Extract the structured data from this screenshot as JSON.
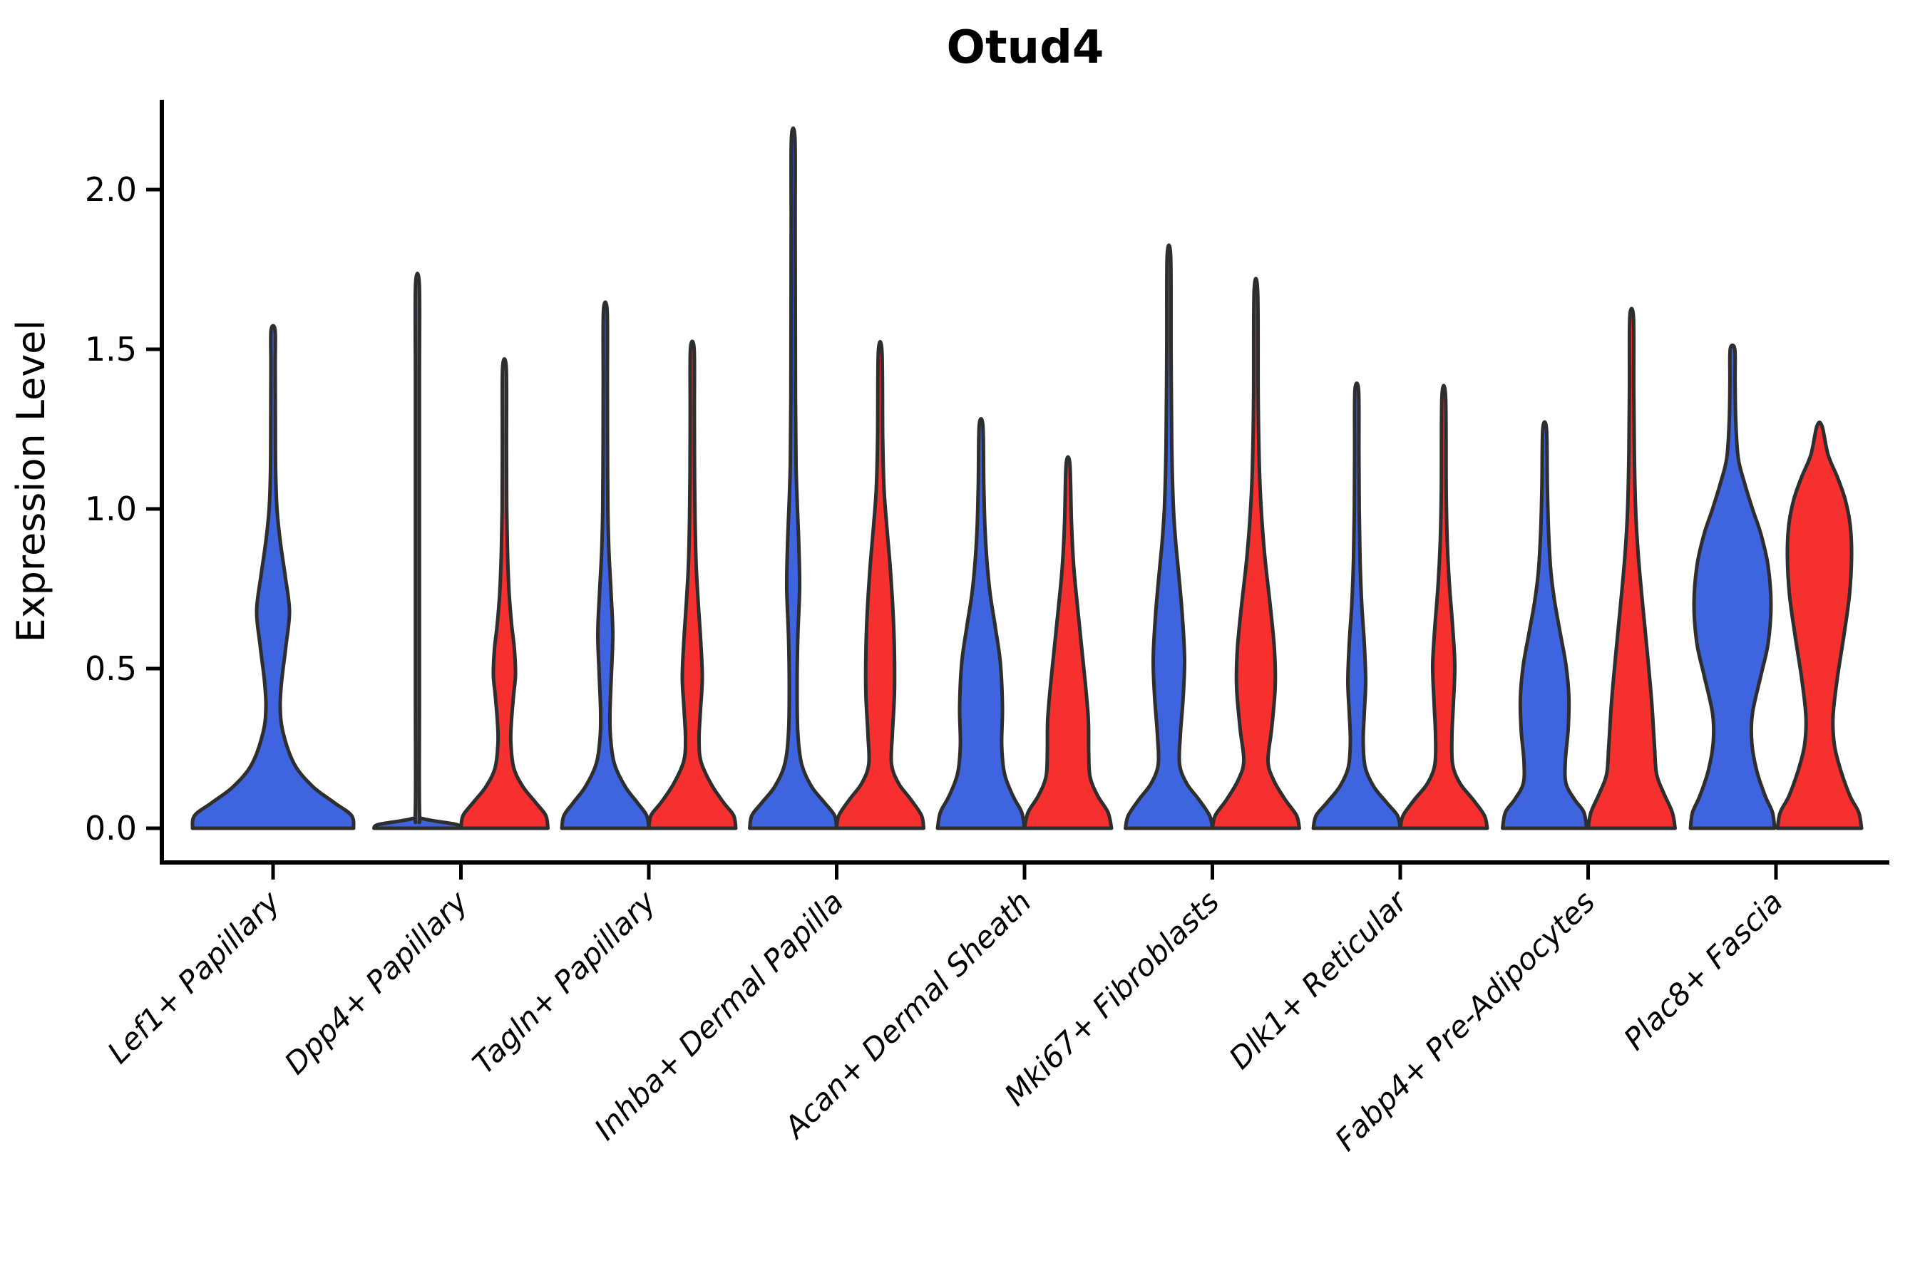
{
  "page": {
    "background": "#FFFFFF"
  },
  "chart_data": {
    "type": "violin",
    "title": "Otud4",
    "ylabel": "Expression Level",
    "xlabel": "",
    "grid": false,
    "legend": "none",
    "axis_color": "#000000",
    "outline_color": "#2E2E2E",
    "series_colors": {
      "blue": "#3E64E0",
      "red": "#F5302E"
    },
    "ylim": [
      -0.11,
      2.28
    ],
    "yticks": [
      {
        "value": 0.0,
        "label": "0.0"
      },
      {
        "value": 0.5,
        "label": "0.5"
      },
      {
        "value": 1.0,
        "label": "1.0"
      },
      {
        "value": 1.5,
        "label": "1.5"
      },
      {
        "value": 2.0,
        "label": "2.0"
      }
    ],
    "categories": [
      "Lef1+ Papillary",
      "Dpp4+ Papillary",
      "Tagln+ Papillary",
      "Inhba+ Dermal Papilla",
      "Acan+ Dermal Sheath",
      "Mki67+ Fibroblasts",
      "Dlk1+ Reticular",
      "Fabp4+ Pre-Adipocytes",
      "Plac8+ Fascia"
    ],
    "violins": [
      {
        "category_index": 0,
        "group": "blue",
        "side": "center",
        "max_value": 1.56,
        "profile": [
          [
            0,
            113
          ],
          [
            0.04,
            110
          ],
          [
            0.08,
            86
          ],
          [
            0.13,
            56
          ],
          [
            0.2,
            30
          ],
          [
            0.3,
            14
          ],
          [
            0.38,
            10
          ],
          [
            0.46,
            12
          ],
          [
            0.57,
            18
          ],
          [
            0.68,
            23
          ],
          [
            0.79,
            17
          ],
          [
            0.9,
            10
          ],
          [
            1.0,
            5.5
          ],
          [
            1.12,
            3.6
          ],
          [
            1.3,
            3.2
          ],
          [
            1.45,
            3.0
          ],
          [
            1.56,
            2.8
          ]
        ]
      },
      {
        "category_index": 1,
        "group": "blue",
        "side": "left",
        "max_value": 1.7,
        "profile": [
          [
            0,
            61
          ],
          [
            0.012,
            54
          ],
          [
            0.03,
            8
          ],
          [
            0.05,
            3.0
          ],
          [
            0.4,
            2.8
          ],
          [
            0.9,
            2.8
          ],
          [
            1.4,
            2.8
          ],
          [
            1.7,
            2.7
          ]
        ]
      },
      {
        "category_index": 1,
        "group": "red",
        "side": "right",
        "max_value": 1.44,
        "profile": [
          [
            0,
            61
          ],
          [
            0.04,
            58
          ],
          [
            0.08,
            44
          ],
          [
            0.13,
            26
          ],
          [
            0.19,
            13
          ],
          [
            0.27,
            9
          ],
          [
            0.34,
            10
          ],
          [
            0.42,
            13
          ],
          [
            0.48,
            15.5
          ],
          [
            0.56,
            14
          ],
          [
            0.64,
            10
          ],
          [
            0.74,
            6.5
          ],
          [
            0.86,
            4.4
          ],
          [
            1.0,
            3.2
          ],
          [
            1.2,
            2.9
          ],
          [
            1.44,
            2.6
          ]
        ]
      },
      {
        "category_index": 2,
        "group": "blue",
        "side": "left",
        "max_value": 1.62,
        "profile": [
          [
            0,
            61
          ],
          [
            0.04,
            58
          ],
          [
            0.08,
            45
          ],
          [
            0.13,
            28
          ],
          [
            0.2,
            13
          ],
          [
            0.28,
            7.5
          ],
          [
            0.36,
            6.5
          ],
          [
            0.48,
            8.5
          ],
          [
            0.61,
            10.5
          ],
          [
            0.74,
            8
          ],
          [
            0.87,
            5
          ],
          [
            1.0,
            3.6
          ],
          [
            1.2,
            3.1
          ],
          [
            1.4,
            2.9
          ],
          [
            1.62,
            2.6
          ]
        ]
      },
      {
        "category_index": 2,
        "group": "red",
        "side": "right",
        "max_value": 1.5,
        "profile": [
          [
            0,
            61
          ],
          [
            0.04,
            58
          ],
          [
            0.08,
            44
          ],
          [
            0.14,
            26
          ],
          [
            0.21,
            12
          ],
          [
            0.28,
            9.5
          ],
          [
            0.37,
            11.5
          ],
          [
            0.47,
            14
          ],
          [
            0.58,
            12
          ],
          [
            0.7,
            8.5
          ],
          [
            0.82,
            5.5
          ],
          [
            0.95,
            4.0
          ],
          [
            1.1,
            3.2
          ],
          [
            1.3,
            2.9
          ],
          [
            1.5,
            2.6
          ]
        ]
      },
      {
        "category_index": 3,
        "group": "blue",
        "side": "left",
        "max_value": 2.16,
        "profile": [
          [
            0,
            61
          ],
          [
            0.04,
            58
          ],
          [
            0.08,
            44
          ],
          [
            0.13,
            26
          ],
          [
            0.2,
            12
          ],
          [
            0.3,
            6.5
          ],
          [
            0.45,
            5.5
          ],
          [
            0.6,
            6.5
          ],
          [
            0.75,
            9
          ],
          [
            0.88,
            8
          ],
          [
            1.0,
            6
          ],
          [
            1.14,
            4
          ],
          [
            1.35,
            3.2
          ],
          [
            1.6,
            3.0
          ],
          [
            1.9,
            2.8
          ],
          [
            2.16,
            2.5
          ]
        ]
      },
      {
        "category_index": 3,
        "group": "red",
        "side": "right",
        "max_value": 1.49,
        "profile": [
          [
            0,
            61
          ],
          [
            0.04,
            58
          ],
          [
            0.09,
            43
          ],
          [
            0.14,
            26
          ],
          [
            0.2,
            16
          ],
          [
            0.29,
            17
          ],
          [
            0.42,
            20
          ],
          [
            0.55,
            20
          ],
          [
            0.68,
            18
          ],
          [
            0.82,
            14
          ],
          [
            0.94,
            9.5
          ],
          [
            1.06,
            5.5
          ],
          [
            1.22,
            3.6
          ],
          [
            1.49,
            2.6
          ]
        ]
      },
      {
        "category_index": 4,
        "group": "blue",
        "side": "left",
        "max_value": 1.26,
        "profile": [
          [
            0,
            61
          ],
          [
            0.05,
            57
          ],
          [
            0.1,
            45
          ],
          [
            0.17,
            33
          ],
          [
            0.26,
            29
          ],
          [
            0.38,
            30
          ],
          [
            0.52,
            27
          ],
          [
            0.63,
            20
          ],
          [
            0.73,
            13
          ],
          [
            0.83,
            8.5
          ],
          [
            0.94,
            5.5
          ],
          [
            1.08,
            3.8
          ],
          [
            1.26,
            2.6
          ]
        ]
      },
      {
        "category_index": 4,
        "group": "red",
        "side": "right",
        "max_value": 1.14,
        "profile": [
          [
            0,
            61
          ],
          [
            0.05,
            56
          ],
          [
            0.1,
            42
          ],
          [
            0.16,
            31
          ],
          [
            0.24,
            29
          ],
          [
            0.34,
            28.5
          ],
          [
            0.46,
            24
          ],
          [
            0.58,
            18.5
          ],
          [
            0.7,
            13
          ],
          [
            0.82,
            8
          ],
          [
            0.96,
            4.8
          ],
          [
            1.14,
            2.6
          ]
        ]
      },
      {
        "category_index": 5,
        "group": "blue",
        "side": "left",
        "max_value": 1.79,
        "profile": [
          [
            0,
            61
          ],
          [
            0.04,
            57
          ],
          [
            0.09,
            42
          ],
          [
            0.14,
            25
          ],
          [
            0.2,
            15
          ],
          [
            0.29,
            16
          ],
          [
            0.41,
            20
          ],
          [
            0.53,
            22
          ],
          [
            0.66,
            19
          ],
          [
            0.79,
            14
          ],
          [
            0.91,
            9
          ],
          [
            1.02,
            6
          ],
          [
            1.2,
            4
          ],
          [
            1.5,
            3.0
          ],
          [
            1.79,
            2.5
          ]
        ]
      },
      {
        "category_index": 5,
        "group": "red",
        "side": "right",
        "max_value": 1.68,
        "profile": [
          [
            0,
            61
          ],
          [
            0.04,
            57
          ],
          [
            0.09,
            41
          ],
          [
            0.15,
            25
          ],
          [
            0.21,
            17
          ],
          [
            0.31,
            22
          ],
          [
            0.44,
            27
          ],
          [
            0.56,
            26
          ],
          [
            0.7,
            20
          ],
          [
            0.84,
            13
          ],
          [
            0.98,
            8
          ],
          [
            1.12,
            5
          ],
          [
            1.35,
            3.2
          ],
          [
            1.68,
            2.5
          ]
        ]
      },
      {
        "category_index": 6,
        "group": "blue",
        "side": "left",
        "max_value": 1.37,
        "profile": [
          [
            0,
            61
          ],
          [
            0.04,
            57
          ],
          [
            0.08,
            42
          ],
          [
            0.13,
            24
          ],
          [
            0.19,
            12
          ],
          [
            0.27,
            9
          ],
          [
            0.36,
            10.5
          ],
          [
            0.46,
            12.5
          ],
          [
            0.58,
            10.5
          ],
          [
            0.7,
            7
          ],
          [
            0.84,
            4.6
          ],
          [
            1.0,
            3.4
          ],
          [
            1.18,
            3.0
          ],
          [
            1.37,
            2.6
          ]
        ]
      },
      {
        "category_index": 6,
        "group": "red",
        "side": "right",
        "max_value": 1.35,
        "profile": [
          [
            0,
            61
          ],
          [
            0.04,
            57
          ],
          [
            0.09,
            41
          ],
          [
            0.14,
            23
          ],
          [
            0.2,
            12.5
          ],
          [
            0.29,
            11.5
          ],
          [
            0.39,
            13.5
          ],
          [
            0.51,
            15.5
          ],
          [
            0.63,
            12.5
          ],
          [
            0.76,
            8
          ],
          [
            0.89,
            5
          ],
          [
            1.06,
            3.4
          ],
          [
            1.35,
            2.6
          ]
        ]
      },
      {
        "category_index": 7,
        "group": "blue",
        "side": "left",
        "max_value": 1.25,
        "profile": [
          [
            0,
            59
          ],
          [
            0.05,
            55
          ],
          [
            0.09,
            42
          ],
          [
            0.14,
            30
          ],
          [
            0.21,
            29
          ],
          [
            0.31,
            33
          ],
          [
            0.41,
            34
          ],
          [
            0.51,
            30
          ],
          [
            0.61,
            22
          ],
          [
            0.71,
            14
          ],
          [
            0.81,
            8.5
          ],
          [
            0.93,
            5.5
          ],
          [
            1.07,
            3.8
          ],
          [
            1.25,
            2.6
          ]
        ]
      },
      {
        "category_index": 7,
        "group": "red",
        "side": "right",
        "max_value": 1.6,
        "profile": [
          [
            0,
            61
          ],
          [
            0.05,
            57
          ],
          [
            0.11,
            45
          ],
          [
            0.17,
            35
          ],
          [
            0.26,
            32
          ],
          [
            0.4,
            28
          ],
          [
            0.55,
            22
          ],
          [
            0.7,
            15.5
          ],
          [
            0.85,
            9.5
          ],
          [
            1.0,
            5.6
          ],
          [
            1.18,
            3.8
          ],
          [
            1.38,
            3.0
          ],
          [
            1.6,
            2.6
          ]
        ]
      },
      {
        "category_index": 8,
        "group": "blue",
        "side": "left",
        "max_value": 1.5,
        "profile": [
          [
            0,
            59
          ],
          [
            0.05,
            56
          ],
          [
            0.1,
            46
          ],
          [
            0.18,
            34
          ],
          [
            0.27,
            27
          ],
          [
            0.36,
            28
          ],
          [
            0.48,
            40
          ],
          [
            0.58,
            50
          ],
          [
            0.7,
            54
          ],
          [
            0.82,
            50
          ],
          [
            0.92,
            40
          ],
          [
            1.0,
            28
          ],
          [
            1.08,
            17
          ],
          [
            1.16,
            8
          ],
          [
            1.28,
            4.5
          ],
          [
            1.4,
            3.6
          ],
          [
            1.5,
            3.2
          ]
        ]
      },
      {
        "category_index": 8,
        "group": "red",
        "side": "right",
        "max_value": 1.26,
        "profile": [
          [
            0,
            59
          ],
          [
            0.05,
            55
          ],
          [
            0.1,
            43
          ],
          [
            0.18,
            30
          ],
          [
            0.26,
            21
          ],
          [
            0.35,
            19
          ],
          [
            0.47,
            25
          ],
          [
            0.6,
            34
          ],
          [
            0.73,
            42
          ],
          [
            0.85,
            45
          ],
          [
            0.95,
            43
          ],
          [
            1.03,
            36
          ],
          [
            1.1,
            25
          ],
          [
            1.17,
            12
          ],
          [
            1.26,
            3.5
          ]
        ]
      }
    ]
  }
}
